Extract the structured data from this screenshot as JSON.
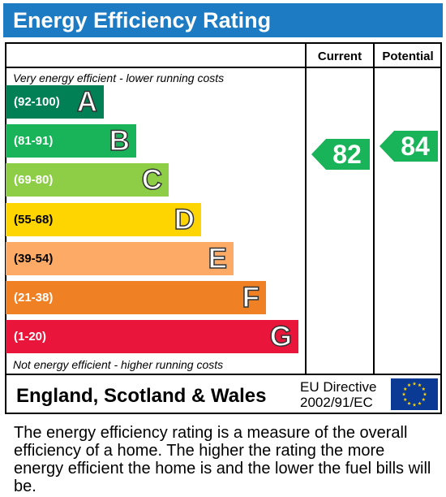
{
  "title": "Energy Efficiency Rating",
  "columns": {
    "current": "Current",
    "potential": "Potential"
  },
  "notes": {
    "top": "Very energy efficient - lower running costs",
    "bottom": "Not energy efficient - higher running costs"
  },
  "footer": {
    "country": "England, Scotland & Wales",
    "directive_line1": "EU Directive",
    "directive_line2": "2002/91/EC"
  },
  "description": "The energy efficiency rating is a measure of the overall efficiency of a home. The higher the rating the more energy efficient the home is and the lower the fuel bills will be.",
  "chart_data": {
    "type": "bar",
    "categories": [
      "A",
      "B",
      "C",
      "D",
      "E",
      "F",
      "G"
    ],
    "ranges": [
      "(92-100)",
      "(81-91)",
      "(69-80)",
      "(55-68)",
      "(39-54)",
      "(21-38)",
      "(1-20)"
    ],
    "colors": [
      "#008054",
      "#19b459",
      "#8dce46",
      "#ffd500",
      "#fcaa65",
      "#ef8023",
      "#e9153b"
    ],
    "current": 82,
    "potential": 84,
    "current_band": "B",
    "potential_band": "B"
  }
}
